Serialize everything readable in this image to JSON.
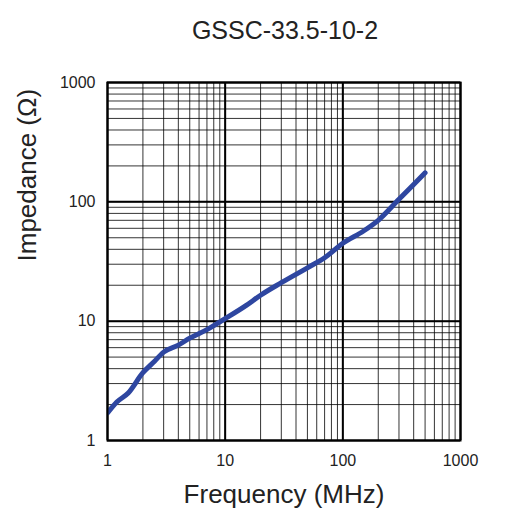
{
  "chart_data": {
    "type": "line",
    "title": "GSSC-33.5-10-2",
    "xlabel": "Frequency (MHz)",
    "ylabel": "Impedance (Ω)",
    "x": [
      1,
      1.2,
      1.5,
      2,
      2.5,
      3,
      4,
      5,
      7,
      10,
      15,
      20,
      30,
      50,
      70,
      100,
      150,
      200,
      300,
      400,
      500
    ],
    "series": [
      {
        "name": "GSSC-33.5-10-2",
        "color": "#2e46a0",
        "values": [
          1.7,
          2.1,
          2.5,
          3.7,
          4.6,
          5.5,
          6.3,
          7.2,
          8.5,
          10.5,
          13.5,
          16.5,
          21,
          28,
          34,
          45,
          57,
          70,
          105,
          140,
          175
        ]
      }
    ],
    "xlim": [
      1,
      1000
    ],
    "ylim": [
      1,
      1000
    ],
    "xticks": [
      1,
      10,
      100,
      1000
    ],
    "yticks": [
      1,
      10,
      100,
      1000
    ],
    "log": true,
    "grid": true
  }
}
